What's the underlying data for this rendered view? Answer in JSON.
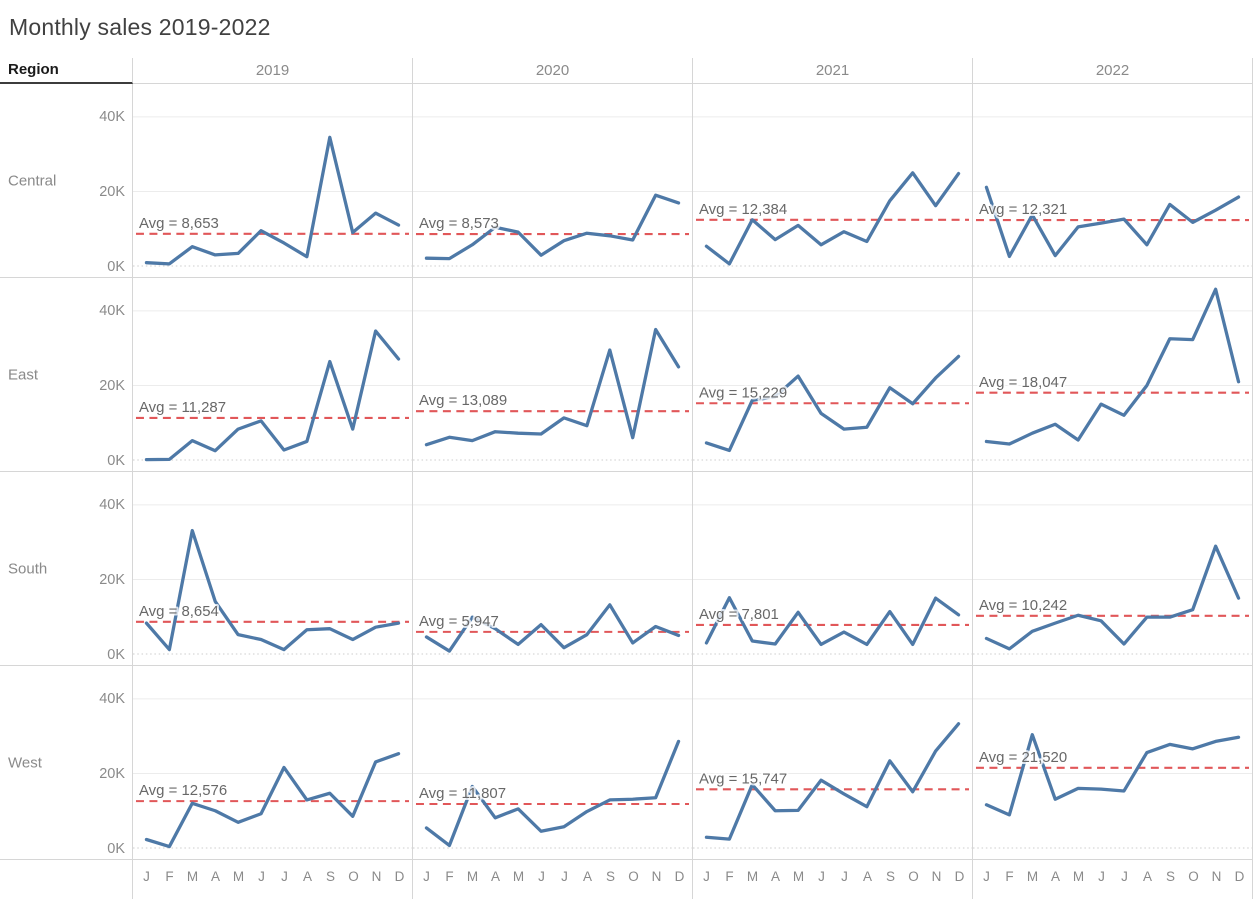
{
  "chart_data": {
    "type": "line",
    "title": "Monthly sales 2019-2022",
    "row_header": "Region",
    "columns": [
      "2019",
      "2020",
      "2021",
      "2022"
    ],
    "rows": [
      "Central",
      "East",
      "South",
      "West"
    ],
    "x_labels": [
      "J",
      "F",
      "M",
      "A",
      "M",
      "J",
      "J",
      "A",
      "S",
      "O",
      "N",
      "D"
    ],
    "y_ticks": [
      "40K",
      "20K",
      "0K"
    ],
    "ylim": [
      0,
      48000
    ],
    "grid": "horizontal gridlines at 0K (dotted), 20K, 40K; small-multiple trellis 4 regions x 4 years",
    "colors": {
      "line": "#4e79a7",
      "avg_line": "#e15759",
      "grid_line": "#ececec",
      "zero_line": "#cccccc",
      "separator": "#d6d6d6",
      "tick_text": "#8a8a8a",
      "avg_text": "#686868",
      "title_text": "#414141",
      "header_text": "#1a1a1a"
    },
    "cells": [
      {
        "region": "Central",
        "year": "2019",
        "avg": 8653,
        "avg_label": "Avg = 8,653",
        "values": [
          900,
          600,
          5200,
          3000,
          3400,
          9500,
          6200,
          2500,
          34500,
          9000,
          14200,
          11000
        ]
      },
      {
        "region": "Central",
        "year": "2020",
        "avg": 8573,
        "avg_label": "Avg = 8,573",
        "values": [
          2100,
          2000,
          5700,
          10400,
          9100,
          2900,
          6800,
          8800,
          8100,
          7000,
          19000,
          16900
        ]
      },
      {
        "region": "Central",
        "year": "2021",
        "avg": 12384,
        "avg_label": "Avg = 12,384",
        "values": [
          5300,
          600,
          12400,
          7100,
          10900,
          5700,
          9200,
          6600,
          17500,
          25000,
          16200,
          24800
        ]
      },
      {
        "region": "Central",
        "year": "2022",
        "avg": 12321,
        "avg_label": "Avg = 12,321",
        "values": [
          21100,
          2600,
          13700,
          2800,
          10500,
          11500,
          12600,
          5700,
          16500,
          11700,
          15000,
          18500
        ]
      },
      {
        "region": "East",
        "year": "2019",
        "avg": 11287,
        "avg_label": "Avg = 11,287",
        "values": [
          100,
          200,
          5200,
          2500,
          8300,
          10500,
          2700,
          5000,
          26400,
          8300,
          34600,
          27100
        ]
      },
      {
        "region": "East",
        "year": "2020",
        "avg": 13089,
        "avg_label": "Avg = 13,089",
        "values": [
          4100,
          6100,
          5200,
          7600,
          7200,
          7000,
          11300,
          9200,
          29500,
          6000,
          35000,
          25000
        ]
      },
      {
        "region": "East",
        "year": "2021",
        "avg": 15229,
        "avg_label": "Avg = 15,229",
        "values": [
          4600,
          2600,
          16000,
          17000,
          22500,
          12500,
          8300,
          8800,
          19400,
          15100,
          22000,
          27800
        ]
      },
      {
        "region": "East",
        "year": "2022",
        "avg": 18047,
        "avg_label": "Avg = 18,047",
        "values": [
          5000,
          4300,
          7200,
          9600,
          5400,
          15000,
          12000,
          20000,
          32500,
          32300,
          45800,
          21000
        ]
      },
      {
        "region": "South",
        "year": "2019",
        "avg": 8654,
        "avg_label": "Avg = 8,654",
        "values": [
          8300,
          1200,
          33100,
          14100,
          5200,
          3900,
          1200,
          6500,
          6800,
          3900,
          7200,
          8300
        ]
      },
      {
        "region": "South",
        "year": "2020",
        "avg": 5947,
        "avg_label": "Avg = 5,947",
        "values": [
          4600,
          800,
          9900,
          6800,
          2600,
          7900,
          1700,
          5200,
          13200,
          3000,
          7400,
          5000
        ]
      },
      {
        "region": "South",
        "year": "2021",
        "avg": 7801,
        "avg_label": "Avg = 7,801",
        "values": [
          3000,
          15100,
          3500,
          2700,
          11200,
          2600,
          5900,
          2600,
          11400,
          2600,
          15000,
          10500
        ]
      },
      {
        "region": "South",
        "year": "2022",
        "avg": 10242,
        "avg_label": "Avg = 10,242",
        "values": [
          4200,
          1400,
          6100,
          8300,
          10400,
          8900,
          2700,
          9900,
          9900,
          11900,
          28900,
          15000
        ]
      },
      {
        "region": "West",
        "year": "2019",
        "avg": 12576,
        "avg_label": "Avg = 12,576",
        "values": [
          2300,
          400,
          12000,
          10000,
          6900,
          9200,
          21600,
          12900,
          14700,
          8500,
          23100,
          25300
        ]
      },
      {
        "region": "West",
        "year": "2020",
        "avg": 11807,
        "avg_label": "Avg = 11,807",
        "values": [
          5400,
          700,
          16500,
          8100,
          10500,
          4500,
          5700,
          9800,
          12900,
          13100,
          13500,
          28600
        ]
      },
      {
        "region": "West",
        "year": "2021",
        "avg": 15747,
        "avg_label": "Avg = 15,747",
        "values": [
          2900,
          2400,
          17000,
          10000,
          10100,
          18200,
          14500,
          11100,
          23400,
          15100,
          26000,
          33300
        ]
      },
      {
        "region": "West",
        "year": "2022",
        "avg": 21520,
        "avg_label": "Avg = 21,520",
        "values": [
          11600,
          8900,
          30400,
          13100,
          16000,
          15800,
          15300,
          25600,
          27800,
          26600,
          28600,
          29700
        ]
      }
    ]
  }
}
